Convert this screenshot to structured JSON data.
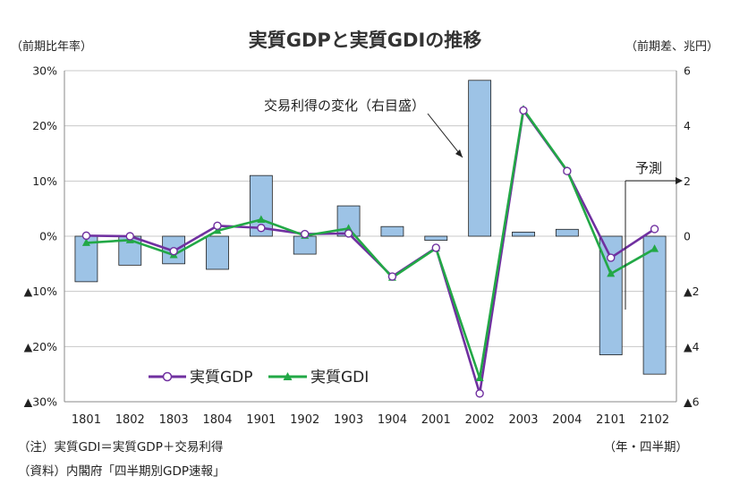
{
  "chart_data": {
    "type": "bar+line",
    "title": "実質GDPと実質GDIの推移",
    "left_axis_unit": "（前期比年率）",
    "right_axis_unit": "（前期差、兆円）",
    "x_axis_unit": "（年・四半期）",
    "categories": [
      "1801",
      "1802",
      "1803",
      "1804",
      "1901",
      "1902",
      "1903",
      "1904",
      "2001",
      "2002",
      "2003",
      "2004",
      "2101",
      "2102"
    ],
    "left_axis": {
      "range": [
        -30,
        30
      ],
      "ticks": [
        30,
        20,
        10,
        0,
        -10,
        -20,
        -30
      ],
      "tick_labels": [
        "30%",
        "20%",
        "10%",
        "0%",
        "▲10%",
        "▲20%",
        "▲30%"
      ]
    },
    "right_axis": {
      "range": [
        -6,
        6
      ],
      "ticks": [
        6,
        4,
        2,
        0,
        -2,
        -4,
        -6
      ],
      "tick_labels": [
        "6",
        "4",
        "2",
        "0",
        "▲2",
        "▲4",
        "▲6"
      ]
    },
    "bar_series": {
      "name": "交易利得の変化（右目盛）",
      "axis": "right",
      "color": "#9dc3e6",
      "values": [
        -1.65,
        -1.05,
        -1.0,
        -1.2,
        2.2,
        -0.65,
        1.1,
        0.35,
        -0.15,
        5.65,
        0.15,
        0.25,
        -4.3,
        -5.0
      ]
    },
    "line_series": [
      {
        "name": "実質GDP",
        "axis": "left",
        "color": "#7030a0",
        "marker": "circle",
        "values": [
          0.1,
          0.0,
          -2.7,
          1.9,
          1.5,
          0.4,
          0.5,
          -7.3,
          -2.1,
          -28.5,
          22.8,
          11.8,
          -3.9,
          1.3
        ]
      },
      {
        "name": "実質GDI",
        "axis": "left",
        "color": "#22a846",
        "marker": "triangle",
        "values": [
          -1.2,
          -0.7,
          -3.4,
          1.0,
          3.0,
          0.1,
          1.4,
          -7.5,
          -2.2,
          -25.7,
          23.0,
          11.9,
          -6.8,
          -2.3
        ]
      }
    ],
    "annotations": [
      {
        "text": "交易利得の変化（右目盛）",
        "points_to": "2002 bar"
      },
      {
        "text": "予測",
        "points_to": "2102"
      }
    ],
    "legend": {
      "placement": "bottom-left",
      "entries": [
        "実質GDP",
        "実質GDI"
      ]
    },
    "grid": "horizontal"
  },
  "notes": [
    "（注）実質GDI＝実質GDP＋交易利得",
    "（資料）内閣府「四半期別GDP速報」"
  ]
}
